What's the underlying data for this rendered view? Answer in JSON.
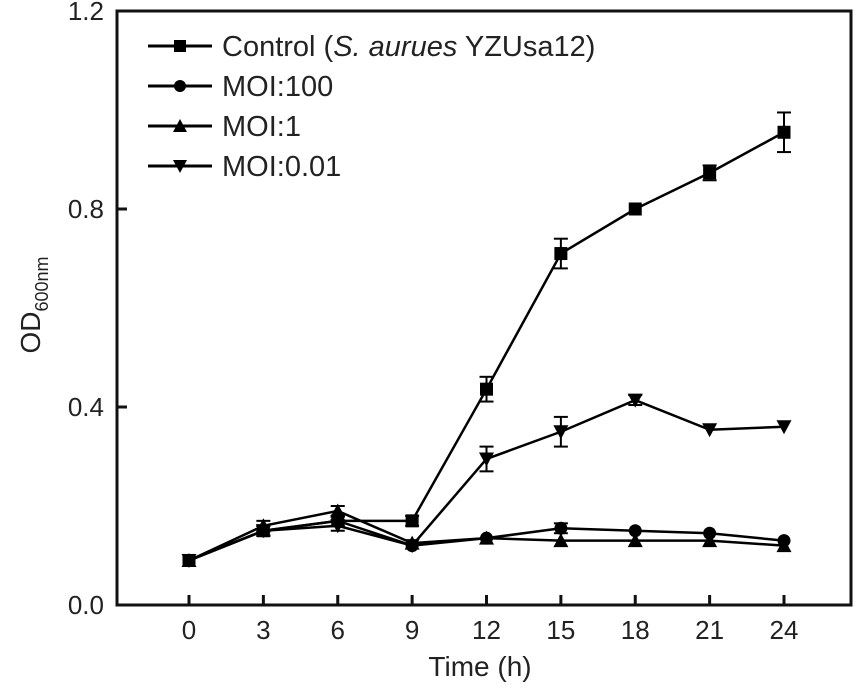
{
  "chart_data": {
    "type": "line",
    "title": "",
    "xlabel": "Time (h)",
    "ylabel": "OD",
    "ylabel_subscript": "600nm",
    "x": [
      0,
      3,
      6,
      9,
      12,
      15,
      18,
      21,
      24
    ],
    "x_ticks": [
      "0",
      "3",
      "6",
      "9",
      "12",
      "15",
      "18",
      "21",
      "24"
    ],
    "y_ticks": [
      "0.0",
      "0.4",
      "0.8",
      "1.2"
    ],
    "y_tick_values": [
      0.0,
      0.4,
      0.8,
      1.2
    ],
    "xlim": [
      -3,
      27
    ],
    "ylim": [
      0,
      1.2
    ],
    "grid": false,
    "legend_position": "top-left",
    "series": [
      {
        "name": "Control (S. aurues YZUsa12)",
        "legend_parts": [
          "Control (",
          "S. aurues",
          " YZUsa12)"
        ],
        "marker": "square",
        "values": [
          0.09,
          0.15,
          0.17,
          0.17,
          0.436,
          0.71,
          0.8,
          0.873,
          0.955
        ],
        "errors": [
          0.005,
          0.01,
          0.01,
          0.01,
          0.025,
          0.03,
          0.005,
          0.015,
          0.04
        ]
      },
      {
        "name": "MOI:100",
        "marker": "circle",
        "values": [
          0.09,
          0.15,
          0.17,
          0.12,
          0.135,
          0.155,
          0.15,
          0.145,
          0.13
        ],
        "errors": [
          0.005,
          0.01,
          0.01,
          0.005,
          0.005,
          0.01,
          0.005,
          0.005,
          0.005
        ]
      },
      {
        "name": "MOI:1",
        "marker": "triangle-up",
        "values": [
          0.09,
          0.16,
          0.19,
          0.125,
          0.135,
          0.13,
          0.13,
          0.13,
          0.12
        ],
        "errors": [
          0.005,
          0.01,
          0.01,
          0.005,
          0.005,
          0.005,
          0.005,
          0.005,
          0.005
        ]
      },
      {
        "name": "MOI:0.01",
        "marker": "triangle-down",
        "values": [
          0.09,
          0.15,
          0.16,
          0.12,
          0.295,
          0.35,
          0.414,
          0.354,
          0.36
        ],
        "errors": [
          0.005,
          0.01,
          0.01,
          0.005,
          0.025,
          0.03,
          0.01,
          0.005,
          0.005
        ]
      }
    ]
  }
}
